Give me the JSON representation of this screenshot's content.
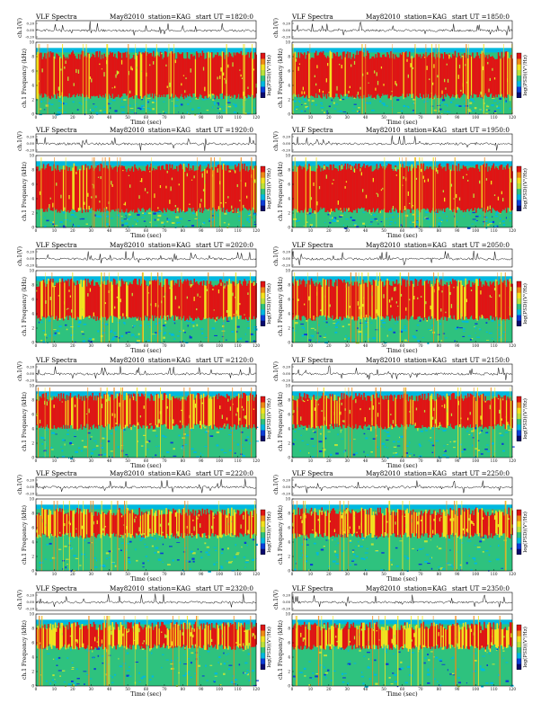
{
  "colors": {
    "colormap": [
      "#0a0a6e",
      "#0b3dd8",
      "#00b8e0",
      "#2ec27e",
      "#b9e23b",
      "#f3e21e",
      "#f08a16",
      "#e01414"
    ],
    "trace": "#000000",
    "background": "#ffffff"
  },
  "chart_data": [
    {
      "type": "heatmap",
      "title_left": "VLF Spectra",
      "title_date": "May82010",
      "title_station": "station=KAG",
      "title_start": "start UT =1820:0",
      "ylabel_top": "ch.1(V)",
      "ylabel": "ch.1 Frequency (kHz)",
      "colorbar_label": "log(PSD)(V²/Hz)",
      "xlabel": "Time (sec)",
      "xlim": [
        0,
        120
      ],
      "ylim": [
        0,
        10
      ],
      "xticks": [
        0,
        10,
        20,
        30,
        40,
        50,
        60,
        70,
        80,
        90,
        100,
        110,
        120
      ],
      "yticks": [
        0,
        2,
        4,
        6,
        8,
        10
      ],
      "top_yticks": [
        "0.20",
        "0.00",
        "-0.20"
      ],
      "band_center_khz": [
        5.5,
        5.5
      ],
      "band_halfwidth_khz": 2.6,
      "red_intensity": 0.92,
      "seed": 11
    },
    {
      "type": "heatmap",
      "title_left": "VLF Spectra",
      "title_date": "May82010",
      "title_station": "station=KAG",
      "title_start": "start UT =1850:0",
      "ylabel_top": "ch.1(V)",
      "ylabel": "ch.1 Frequency (kHz)",
      "colorbar_label": "log(PSD)(V²/Hz)",
      "xlabel": "Time (sec)",
      "xlim": [
        0,
        120
      ],
      "ylim": [
        0,
        10
      ],
      "xticks": [
        0,
        10,
        20,
        30,
        40,
        50,
        60,
        70,
        80,
        90,
        100,
        110,
        120
      ],
      "yticks": [
        0,
        2,
        4,
        6,
        8,
        10
      ],
      "top_yticks": [
        "0.20",
        "0.00",
        "-0.20"
      ],
      "band_center_khz": [
        5.5,
        5.5
      ],
      "band_halfwidth_khz": 2.6,
      "red_intensity": 0.92,
      "seed": 23
    },
    {
      "type": "heatmap",
      "title_left": "VLF Spectra",
      "title_date": "May82010",
      "title_station": "station=KAG",
      "title_start": "start UT =1920:0",
      "ylabel_top": "ch.1(V)",
      "ylabel": "ch.1 Frequency (kHz)",
      "colorbar_label": "log(PSD)(V²/Hz)",
      "xlabel": "Time (sec)",
      "xlim": [
        0,
        120
      ],
      "ylim": [
        0,
        10
      ],
      "xticks": [
        0,
        10,
        20,
        30,
        40,
        50,
        60,
        70,
        80,
        90,
        100,
        110,
        120
      ],
      "yticks": [
        0,
        2,
        4,
        6,
        8,
        10
      ],
      "top_yticks": [
        "0.20",
        "0.00",
        "-0.20"
      ],
      "band_center_khz": [
        5.5,
        5.5
      ],
      "band_halfwidth_khz": 2.7,
      "red_intensity": 0.94,
      "seed": 37
    },
    {
      "type": "heatmap",
      "title_left": "VLF Spectra",
      "title_date": "May82010",
      "title_station": "station=KAG",
      "title_start": "start UT =1950:0",
      "ylabel_top": "ch.1(V)",
      "ylabel": "ch.1 Frequency (kHz)",
      "colorbar_label": "log(PSD)(V²/Hz)",
      "xlabel": "Time (sec)",
      "xlim": [
        0,
        120
      ],
      "ylim": [
        0,
        10
      ],
      "xticks": [
        0,
        10,
        20,
        30,
        40,
        50,
        60,
        70,
        80,
        90,
        100,
        110,
        120
      ],
      "yticks": [
        0,
        2,
        4,
        6,
        8,
        10
      ],
      "top_yticks": [
        "0.20",
        "0.00",
        "-0.20"
      ],
      "band_center_khz": [
        5.5,
        5.5
      ],
      "band_halfwidth_khz": 2.7,
      "red_intensity": 0.94,
      "seed": 41
    },
    {
      "type": "heatmap",
      "title_left": "VLF Spectra",
      "title_date": "May82010",
      "title_station": "station=KAG",
      "title_start": "start UT =2020:0",
      "ylabel_top": "ch.1(V)",
      "ylabel": "ch.1 Frequency (kHz)",
      "colorbar_label": "log(PSD)(V²/Hz)",
      "xlabel": "Time (sec)",
      "xlim": [
        0,
        120
      ],
      "ylim": [
        0,
        10
      ],
      "xticks": [
        0,
        10,
        20,
        30,
        40,
        50,
        60,
        70,
        80,
        90,
        100,
        110,
        120
      ],
      "yticks": [
        0,
        2,
        4,
        6,
        8,
        10
      ],
      "top_yticks": [
        "0.20",
        "0.00",
        "-0.20"
      ],
      "band_center_khz": [
        6.0,
        6.0
      ],
      "band_halfwidth_khz": 2.2,
      "red_intensity": 0.8,
      "seed": 53
    },
    {
      "type": "heatmap",
      "title_left": "VLF Spectra",
      "title_date": "May82010",
      "title_station": "station=KAG",
      "title_start": "start UT =2050:0",
      "ylabel_top": "ch.1(V)",
      "ylabel": "ch.1 Frequency (kHz)",
      "colorbar_label": "log(PSD)(V²/Hz)",
      "xlabel": "Time (sec)",
      "xlim": [
        0,
        120
      ],
      "ylim": [
        0,
        10
      ],
      "xticks": [
        0,
        10,
        20,
        30,
        40,
        50,
        60,
        70,
        80,
        90,
        100,
        110,
        120
      ],
      "yticks": [
        0,
        2,
        4,
        6,
        8,
        10
      ],
      "top_yticks": [
        "0.20",
        "0.00",
        "-0.20"
      ],
      "band_center_khz": [
        6.0,
        6.0
      ],
      "band_halfwidth_khz": 2.2,
      "red_intensity": 0.8,
      "seed": 67
    },
    {
      "type": "heatmap",
      "title_left": "VLF Spectra",
      "title_date": "May82010",
      "title_station": "station=KAG",
      "title_start": "start UT =2120:0",
      "ylabel_top": "ch.1(V)",
      "ylabel": "ch.1 Frequency (kHz)",
      "colorbar_label": "log(PSD)(V²/Hz)",
      "xlabel": "Time (sec)",
      "xlim": [
        0,
        120
      ],
      "ylim": [
        0,
        10
      ],
      "xticks": [
        0,
        10,
        20,
        30,
        40,
        50,
        60,
        70,
        80,
        90,
        100,
        110,
        120
      ],
      "yticks": [
        0,
        2,
        4,
        6,
        8,
        10
      ],
      "top_yticks": [
        "0.20",
        "0.00",
        "-0.20"
      ],
      "band_center_khz": [
        6.5,
        6.5
      ],
      "band_halfwidth_khz": 1.8,
      "red_intensity": 0.78,
      "seed": 71
    },
    {
      "type": "heatmap",
      "title_left": "VLF Spectra",
      "title_date": "May82010",
      "title_station": "station=KAG",
      "title_start": "start UT =2150:0",
      "ylabel_top": "ch.1(V)",
      "ylabel": "ch.1 Frequency (kHz)",
      "colorbar_label": "log(PSD)(V²/Hz)",
      "xlabel": "Time (sec)",
      "xlim": [
        0,
        120
      ],
      "ylim": [
        0,
        10
      ],
      "xticks": [
        0,
        10,
        20,
        30,
        40,
        50,
        60,
        70,
        80,
        90,
        100,
        110,
        120
      ],
      "yticks": [
        0,
        2,
        4,
        6,
        8,
        10
      ],
      "top_yticks": [
        "0.20",
        "0.00",
        "-0.20"
      ],
      "band_center_khz": [
        6.5,
        6.5
      ],
      "band_halfwidth_khz": 1.8,
      "red_intensity": 0.78,
      "seed": 83
    },
    {
      "type": "heatmap",
      "title_left": "VLF Spectra",
      "title_date": "May82010",
      "title_station": "station=KAG",
      "title_start": "start UT =2220:0",
      "ylabel_top": "ch.1(V)",
      "ylabel": "ch.1 Frequency (kHz)",
      "colorbar_label": "log(PSD)(V²/Hz)",
      "xlabel": "Time (sec)",
      "xlim": [
        0,
        120
      ],
      "ylim": [
        0,
        10
      ],
      "xticks": [
        0,
        10,
        20,
        30,
        40,
        50,
        60,
        70,
        80,
        90,
        100,
        110,
        120
      ],
      "yticks": [
        0,
        2,
        4,
        6,
        8,
        10
      ],
      "top_yticks": [
        "0.20",
        "0.00",
        "-0.20"
      ],
      "band_center_khz": [
        6.7,
        6.7
      ],
      "band_halfwidth_khz": 1.4,
      "red_intensity": 0.7,
      "seed": 97
    },
    {
      "type": "heatmap",
      "title_left": "VLF Spectra",
      "title_date": "May82010",
      "title_station": "station=KAG",
      "title_start": "start UT =2250:0",
      "ylabel_top": "ch.1(V)",
      "ylabel": "ch.1 Frequency (kHz)",
      "colorbar_label": "log(PSD)(V²/Hz)",
      "xlabel": "Time (sec)",
      "xlim": [
        0,
        120
      ],
      "ylim": [
        0,
        10
      ],
      "xticks": [
        0,
        10,
        20,
        30,
        40,
        50,
        60,
        70,
        80,
        90,
        100,
        110,
        120
      ],
      "yticks": [
        0,
        2,
        4,
        6,
        8,
        10
      ],
      "top_yticks": [
        "0.20",
        "0.00",
        "-0.20"
      ],
      "band_center_khz": [
        6.7,
        6.7
      ],
      "band_halfwidth_khz": 1.4,
      "red_intensity": 0.7,
      "seed": 101
    },
    {
      "type": "heatmap",
      "title_left": "VLF Spectra",
      "title_date": "May82010",
      "title_station": "station=KAG",
      "title_start": "start UT =2320:0",
      "ylabel_top": "ch.1(V)",
      "ylabel": "ch.1 Frequency (kHz)",
      "colorbar_label": "log(PSD)(V²/Hz)",
      "xlabel": "Time (sec)",
      "xlim": [
        0,
        120
      ],
      "ylim": [
        0,
        10
      ],
      "xticks": [
        0,
        10,
        20,
        30,
        40,
        50,
        60,
        70,
        80,
        90,
        100,
        110,
        120
      ],
      "yticks": [
        0,
        2,
        4,
        6,
        8,
        10
      ],
      "top_yticks": [
        "0.20",
        "0.00",
        "-0.20"
      ],
      "band_center_khz": [
        7.0,
        7.0
      ],
      "band_halfwidth_khz": 1.2,
      "red_intensity": 0.62,
      "seed": 113
    },
    {
      "type": "heatmap",
      "title_left": "VLF Spectra",
      "title_date": "May82010",
      "title_station": "station=KAG",
      "title_start": "start UT =2350:0",
      "ylabel_top": "ch.1(V)",
      "ylabel": "ch.1 Frequency (kHz)",
      "colorbar_label": "log(PSD)(V²/Hz)",
      "xlabel": "Time (sec)",
      "xlim": [
        0,
        120
      ],
      "ylim": [
        0,
        10
      ],
      "xticks": [
        0,
        10,
        20,
        30,
        40,
        50,
        60,
        70,
        80,
        90,
        100,
        110,
        120
      ],
      "yticks": [
        0,
        2,
        4,
        6,
        8,
        10
      ],
      "top_yticks": [
        "0.20",
        "0.00",
        "-0.20"
      ],
      "band_center_khz": [
        7.0,
        7.0
      ],
      "band_halfwidth_khz": 1.2,
      "red_intensity": 0.62,
      "seed": 127
    }
  ]
}
